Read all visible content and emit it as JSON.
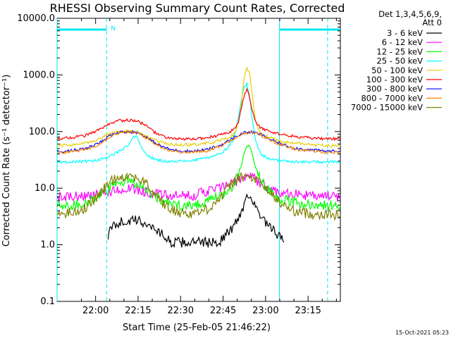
{
  "chart_data": {
    "type": "line",
    "title": "RHESSI Observing Summary Count Rates, Corrected",
    "xlabel": "Start Time (25-Feb-05 21:46:22)",
    "ylabel": "Corrected Count Rate (s⁻¹ detector⁻¹)",
    "y_scale": "log",
    "ylim": [
      0.1,
      10000
    ],
    "y_ticks": [
      "0.1",
      "1.0",
      "10.0",
      "100.0",
      "1000.0",
      "10000.0"
    ],
    "x_unit": "minutes since 21:46:22",
    "xlim": [
      0,
      100
    ],
    "x_ticks": [
      {
        "label": "22:00",
        "value": 13.6
      },
      {
        "label": "22:15",
        "value": 28.6
      },
      {
        "label": "22:30",
        "value": 43.6
      },
      {
        "label": "22:45",
        "value": 58.6
      },
      {
        "label": "23:00",
        "value": 73.6
      },
      {
        "label": "23:15",
        "value": 88.6
      }
    ],
    "legend_header": [
      "Det 1,3,4,5,6,9,",
      "Att 0"
    ],
    "series": [
      {
        "name": "3 - 6 keV",
        "color": "#000000",
        "x": [
          18,
          20,
          22,
          25,
          28,
          30,
          32,
          34,
          36,
          38,
          40,
          57,
          59,
          62,
          64,
          66,
          67,
          68,
          69,
          70,
          72,
          75,
          78,
          80
        ],
        "y": [
          1.5,
          2.2,
          2.5,
          2.6,
          2.7,
          2.5,
          2.3,
          2.0,
          1.7,
          1.4,
          1.1,
          1.1,
          1.4,
          2.0,
          3.0,
          5.0,
          7.5,
          8.0,
          6.0,
          4.5,
          3.0,
          2.0,
          1.5,
          1.1
        ]
      },
      {
        "name": "6 - 12 keV",
        "color": "#ff00ff",
        "x": [
          0,
          5,
          10,
          13.6,
          16,
          18,
          20,
          22,
          25,
          28,
          30,
          32,
          34,
          36,
          38,
          40,
          43,
          45,
          48,
          50,
          53,
          55,
          58,
          60,
          62,
          64,
          66,
          67,
          68,
          69,
          70,
          71,
          72,
          74,
          76,
          78,
          80,
          82,
          85,
          88,
          90,
          93,
          95,
          98,
          100
        ],
        "y": [
          7.0,
          7.0,
          7.3,
          7.6,
          8.0,
          8.5,
          9.0,
          9.5,
          9.7,
          9.5,
          9.0,
          8.5,
          8.0,
          7.8,
          7.5,
          7.3,
          7.2,
          7.3,
          7.5,
          8.0,
          8.8,
          9.5,
          10.2,
          11.0,
          12.0,
          14.0,
          16.0,
          16.8,
          16.5,
          15.5,
          14.5,
          13.2,
          12.0,
          10.5,
          9.5,
          8.8,
          8.3,
          8.0,
          7.8,
          7.5,
          7.3,
          7.2,
          7.2,
          7.1,
          7.0
        ]
      },
      {
        "name": "12 - 25 keV",
        "color": "#00ff00",
        "x": [
          0,
          5,
          10,
          13.6,
          16,
          18,
          20,
          22,
          25,
          28,
          30,
          32,
          34,
          36,
          38,
          40,
          43,
          45,
          48,
          50,
          53,
          55,
          58,
          60,
          62,
          63,
          64,
          65,
          66,
          67,
          68,
          69,
          70,
          71,
          72,
          74,
          76,
          78,
          80,
          82,
          85,
          88,
          90,
          93,
          95,
          98,
          100
        ],
        "y": [
          5.0,
          5.0,
          5.5,
          6.5,
          8.0,
          9.5,
          11.0,
          12.5,
          13.5,
          12.5,
          11.0,
          9.0,
          7.5,
          6.5,
          5.8,
          5.2,
          5.0,
          5.0,
          5.1,
          5.3,
          5.8,
          6.5,
          7.5,
          9.0,
          11.0,
          13.5,
          17.0,
          25.0,
          40.0,
          55.0,
          55.0,
          38.0,
          25.0,
          18.0,
          14.0,
          10.0,
          8.0,
          7.0,
          6.2,
          5.8,
          5.5,
          5.3,
          5.2,
          5.0,
          5.0,
          5.0,
          5.0
        ]
      },
      {
        "name": "25 - 50 keV",
        "color": "#00ffff",
        "x": [
          0,
          5,
          10,
          13.6,
          16,
          18,
          20,
          22,
          25,
          27,
          28,
          29,
          30,
          32,
          34,
          36,
          38,
          40,
          43,
          45,
          48,
          50,
          53,
          55,
          58,
          60,
          62,
          63,
          64,
          65,
          66,
          67,
          68,
          69,
          70,
          71,
          72,
          74,
          76,
          78,
          80,
          82,
          85,
          88,
          90,
          93,
          95,
          98,
          100
        ],
        "y": [
          29,
          29,
          30,
          31,
          33,
          36,
          40,
          45,
          55,
          80,
          82,
          65,
          48,
          38,
          33,
          31,
          30,
          30,
          30,
          30,
          31,
          32,
          34,
          37,
          42,
          50,
          70,
          100,
          180,
          350,
          600,
          700,
          400,
          150,
          70,
          50,
          40,
          35,
          32,
          31,
          30,
          30,
          29,
          29,
          29,
          29,
          29,
          29,
          29
        ]
      },
      {
        "name": "50 - 100 keV",
        "color": "#e5d000",
        "x": [
          0,
          5,
          10,
          13.6,
          16,
          18,
          20,
          22,
          25,
          28,
          30,
          32,
          34,
          36,
          38,
          40,
          43,
          45,
          48,
          50,
          53,
          55,
          58,
          60,
          62,
          63,
          64,
          65,
          66,
          67,
          68,
          69,
          70,
          71,
          72,
          74,
          76,
          78,
          80,
          82,
          85,
          88,
          90,
          93,
          95,
          98,
          100
        ],
        "y": [
          56,
          58,
          62,
          70,
          80,
          88,
          95,
          100,
          102,
          98,
          90,
          80,
          72,
          66,
          62,
          60,
          58,
          58,
          59,
          60,
          62,
          65,
          70,
          76,
          85,
          100,
          140,
          300,
          900,
          1350,
          1000,
          400,
          160,
          110,
          95,
          82,
          75,
          70,
          66,
          64,
          62,
          60,
          58,
          57,
          57,
          56,
          56
        ]
      },
      {
        "name": "100 - 300 keV",
        "color": "#ff0000",
        "x": [
          0,
          5,
          10,
          13.6,
          16,
          18,
          20,
          22,
          25,
          28,
          30,
          32,
          34,
          36,
          38,
          40,
          43,
          45,
          48,
          50,
          53,
          55,
          58,
          60,
          62,
          63,
          64,
          65,
          66,
          67,
          68,
          69,
          70,
          71,
          72,
          74,
          76,
          78,
          80,
          82,
          85,
          88,
          90,
          93,
          95,
          98,
          100
        ],
        "y": [
          75,
          78,
          85,
          100,
          115,
          130,
          145,
          155,
          160,
          155,
          140,
          120,
          100,
          88,
          80,
          76,
          74,
          73,
          74,
          75,
          78,
          82,
          88,
          95,
          105,
          115,
          150,
          250,
          420,
          540,
          400,
          220,
          150,
          125,
          115,
          105,
          98,
          92,
          88,
          84,
          80,
          78,
          76,
          75,
          75,
          74,
          74
        ]
      },
      {
        "name": "300 - 800 keV",
        "color": "#0000ff",
        "x": [
          0,
          5,
          10,
          13.6,
          16,
          18,
          20,
          22,
          25,
          28,
          30,
          32,
          34,
          36,
          38,
          40,
          43,
          45,
          48,
          50,
          53,
          55,
          58,
          60,
          62,
          64,
          66,
          68,
          70,
          72,
          74,
          76,
          78,
          80,
          82,
          85,
          88,
          90,
          93,
          95,
          98,
          100
        ],
        "y": [
          44,
          46,
          50,
          58,
          68,
          80,
          90,
          97,
          100,
          97,
          88,
          76,
          66,
          58,
          52,
          48,
          46,
          45,
          45,
          46,
          48,
          52,
          58,
          66,
          76,
          86,
          95,
          98,
          95,
          88,
          78,
          70,
          63,
          58,
          54,
          50,
          48,
          47,
          46,
          45,
          45,
          45
        ]
      },
      {
        "name": "800 - 7000 keV",
        "color": "#ff8800",
        "x": [
          0,
          5,
          10,
          13.6,
          16,
          18,
          20,
          22,
          25,
          28,
          30,
          32,
          34,
          36,
          38,
          40,
          43,
          45,
          48,
          50,
          53,
          55,
          58,
          60,
          62,
          64,
          66,
          68,
          70,
          72,
          74,
          76,
          78,
          80,
          82,
          85,
          88,
          90,
          93,
          95,
          98,
          100
        ],
        "y": [
          42,
          44,
          48,
          56,
          66,
          78,
          88,
          95,
          98,
          95,
          86,
          74,
          64,
          56,
          50,
          46,
          44,
          43,
          43,
          44,
          46,
          50,
          56,
          64,
          74,
          84,
          93,
          96,
          93,
          86,
          76,
          68,
          61,
          56,
          52,
          48,
          46,
          45,
          44,
          43,
          43,
          43
        ]
      },
      {
        "name": "7000 - 15000 keV",
        "color": "#808000",
        "x": [
          0,
          5,
          10,
          13.6,
          16,
          18,
          20,
          22,
          25,
          28,
          30,
          32,
          34,
          36,
          38,
          40,
          43,
          45,
          48,
          50,
          53,
          55,
          58,
          60,
          62,
          64,
          66,
          68,
          70,
          72,
          74,
          76,
          78,
          80,
          82,
          85,
          88,
          90,
          93,
          95,
          98,
          100
        ],
        "y": [
          3.5,
          3.7,
          4.5,
          6.5,
          9.0,
          12.0,
          14.5,
          16.0,
          16.5,
          15.5,
          13.5,
          11.0,
          8.5,
          6.5,
          5.0,
          4.2,
          3.8,
          3.6,
          3.6,
          3.8,
          4.3,
          5.2,
          7.0,
          9.5,
          12.5,
          15.0,
          16.0,
          15.5,
          14.0,
          12.0,
          9.5,
          7.5,
          6.0,
          5.0,
          4.3,
          3.8,
          3.6,
          3.5,
          3.5,
          3.5,
          3.4,
          3.4
        ]
      }
    ],
    "annotations": {
      "flag_label": "N",
      "vertical_markers": [
        0,
        17.5,
        78.5,
        95.5
      ],
      "flag_segments": [
        [
          0,
          17.5
        ],
        [
          78.5,
          100
        ]
      ]
    }
  },
  "timestamp": "15-Oct-2021 05:23"
}
